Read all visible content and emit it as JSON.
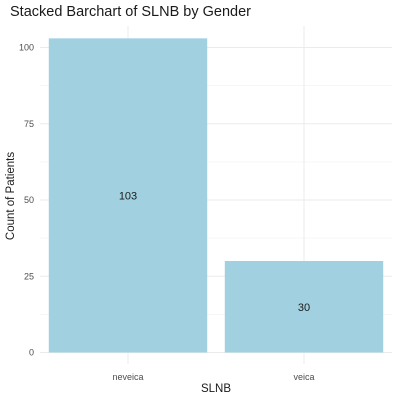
{
  "chart_data": {
    "type": "bar",
    "title": "Stacked Barchart of SLNB by Gender",
    "xlabel": "SLNB",
    "ylabel": "Count of Patients",
    "categories": [
      "neveica",
      "veica"
    ],
    "values": [
      103,
      30
    ],
    "data_labels": [
      "103",
      "30"
    ],
    "ylim": [
      0,
      108
    ],
    "yticks": [
      0,
      25,
      50,
      75,
      100
    ],
    "ytick_labels": [
      "0",
      "25",
      "50",
      "75",
      "100"
    ],
    "grid": true,
    "legend": "none",
    "bar_color": "#a1d1e1"
  }
}
